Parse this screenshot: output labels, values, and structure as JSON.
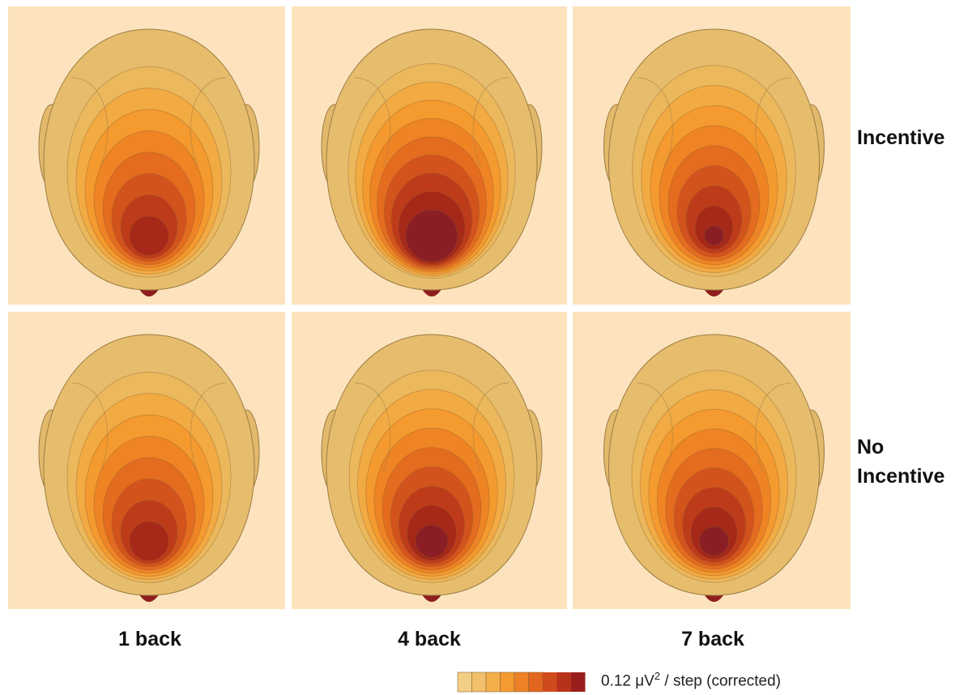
{
  "figure": {
    "row_labels": [
      "Incentive",
      "No Incentive"
    ],
    "column_labels": [
      "1 back",
      "4 back",
      "7 back"
    ],
    "legend": {
      "colors": [
        "#f3cf86",
        "#f2c06a",
        "#f4ae4a",
        "#f49a30",
        "#ee8126",
        "#e2661f",
        "#cf4a1c",
        "#b6321a",
        "#981f1c"
      ],
      "label_value": "0.12 μV",
      "label_sup": "2",
      "label_rest": " / step (corrected)"
    }
  }
}
